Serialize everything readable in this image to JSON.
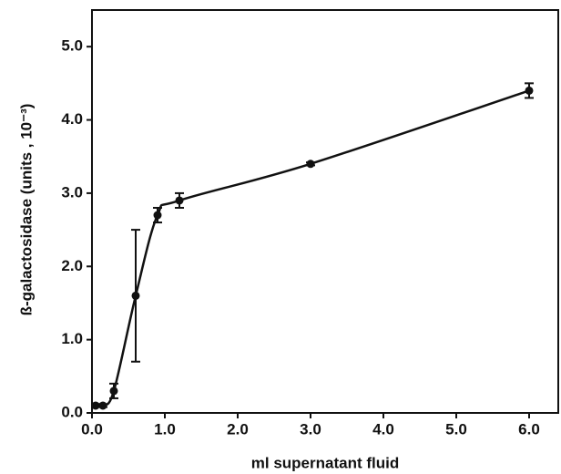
{
  "chart_data": {
    "type": "line",
    "xlabel": "ml supernatant fluid",
    "ylabel": "ß-galactosidase (units , 10⁻³)",
    "x": [
      0.05,
      0.15,
      0.3,
      0.6,
      0.9,
      1.2,
      3.0,
      6.0
    ],
    "values": [
      0.1,
      0.1,
      0.3,
      1.6,
      2.7,
      2.9,
      3.4,
      4.4
    ],
    "errors": [
      0.02,
      0.02,
      0.1,
      0.9,
      0.1,
      0.1,
      0.02,
      0.1
    ],
    "color": "#111111",
    "xlim": [
      0,
      6.4
    ],
    "ylim": [
      0,
      5.5
    ],
    "xticks": [
      {
        "value": 0,
        "label": "0.0"
      },
      {
        "value": 1,
        "label": "1.0"
      },
      {
        "value": 2,
        "label": "2.0"
      },
      {
        "value": 3,
        "label": "3.0"
      },
      {
        "value": 4,
        "label": "4.0"
      },
      {
        "value": 5,
        "label": "5.0"
      },
      {
        "value": 6,
        "label": "6.0"
      }
    ],
    "yticks": [
      {
        "value": 0,
        "label": "0.0"
      },
      {
        "value": 1,
        "label": "1.0"
      },
      {
        "value": 2,
        "label": "2.0"
      },
      {
        "value": 3,
        "label": "3.0"
      },
      {
        "value": 4,
        "label": "4.0"
      },
      {
        "value": 5,
        "label": "5.0"
      }
    ]
  }
}
